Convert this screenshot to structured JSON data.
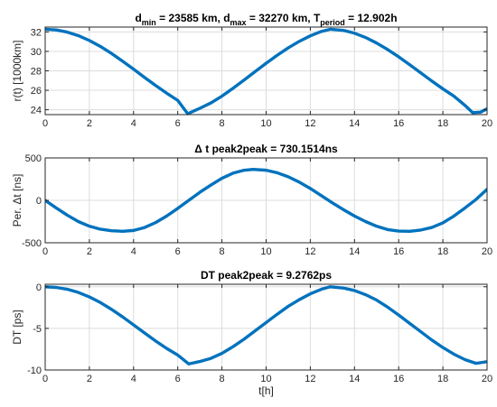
{
  "colors": {
    "line": "#0072BD",
    "grid": "#dcdcdc",
    "axis": "#262626"
  },
  "chart_data": [
    {
      "type": "line",
      "title": {
        "parts": [
          {
            "t": "d"
          },
          {
            "t": "min",
            "sub": true
          },
          {
            "t": " = 23585 km, d"
          },
          {
            "t": "max",
            "sub": true
          },
          {
            "t": " = 32270 km, T"
          },
          {
            "t": "period",
            "sub": true
          },
          {
            "t": " = 12.902h"
          }
        ]
      },
      "xlabel": "",
      "ylabel": "r(t) [1000km]",
      "xlim": [
        0,
        20
      ],
      "ylim": [
        23.5,
        32.5
      ],
      "xticks": [
        0,
        2,
        4,
        6,
        8,
        10,
        12,
        14,
        16,
        18,
        20
      ],
      "yticks": [
        24,
        26,
        28,
        30,
        32
      ],
      "grid": true,
      "series": [
        {
          "x": [
            0,
            0.5,
            1,
            1.5,
            2,
            2.5,
            3,
            3.5,
            4,
            4.5,
            5,
            5.5,
            6,
            6.45,
            7,
            7.5,
            8,
            8.5,
            9,
            9.5,
            10,
            10.5,
            11,
            11.5,
            12,
            12.5,
            12.9,
            13.5,
            14,
            14.5,
            15,
            15.5,
            16,
            16.5,
            17,
            17.5,
            18,
            18.5,
            19,
            19.35,
            19.7,
            20
          ],
          "y": [
            32.27,
            32.2,
            31.98,
            31.62,
            31.12,
            30.51,
            29.79,
            29.0,
            28.17,
            27.32,
            26.49,
            25.7,
            24.96,
            23.59,
            24.15,
            24.7,
            25.4,
            26.2,
            27.05,
            27.92,
            28.78,
            29.6,
            30.36,
            31.03,
            31.6,
            32.05,
            32.27,
            32.16,
            31.87,
            31.43,
            30.86,
            30.19,
            29.44,
            28.63,
            27.79,
            26.95,
            26.15,
            25.4,
            24.45,
            23.7,
            23.75,
            24.1
          ]
        }
      ]
    },
    {
      "type": "line",
      "title": {
        "parts": [
          {
            "t": "Δ t peak2peak = 730.1514ns"
          }
        ]
      },
      "xlabel": "",
      "ylabel": "Per. Δt [ns]",
      "xlim": [
        0,
        20
      ],
      "ylim": [
        -500,
        500
      ],
      "xticks": [
        0,
        2,
        4,
        6,
        8,
        10,
        12,
        14,
        16,
        18,
        20
      ],
      "yticks": [
        -500,
        0,
        500
      ],
      "grid": true,
      "series": [
        {
          "x": [
            0,
            0.5,
            1,
            1.5,
            2,
            2.5,
            3,
            3.5,
            4,
            4.5,
            5,
            5.5,
            6,
            6.5,
            7,
            7.5,
            8,
            8.5,
            9,
            9.4,
            10,
            10.5,
            11,
            11.5,
            12,
            12.5,
            13,
            13.5,
            14,
            14.5,
            15,
            15.5,
            16,
            16.5,
            17,
            17.5,
            18,
            18.5,
            19,
            19.5,
            20
          ],
          "y": [
            0,
            -90,
            -175,
            -250,
            -305,
            -340,
            -358,
            -365,
            -355,
            -320,
            -262,
            -185,
            -95,
            0,
            95,
            180,
            260,
            320,
            355,
            365,
            355,
            325,
            278,
            215,
            140,
            55,
            -30,
            -110,
            -185,
            -250,
            -305,
            -345,
            -362,
            -365,
            -350,
            -320,
            -265,
            -185,
            -90,
            10,
            130
          ]
        }
      ]
    },
    {
      "type": "line",
      "title": {
        "parts": [
          {
            "t": "DT peak2peak = 9.2762ps"
          }
        ]
      },
      "xlabel": "t[h]",
      "ylabel": "DT [ps]",
      "xlim": [
        0,
        20
      ],
      "ylim": [
        -10,
        0.3
      ],
      "xticks": [
        0,
        2,
        4,
        6,
        8,
        10,
        12,
        14,
        16,
        18,
        20
      ],
      "yticks": [
        -10,
        -5,
        0
      ],
      "grid": true,
      "series": [
        {
          "x": [
            0,
            0.5,
            1,
            1.5,
            2,
            2.5,
            3,
            3.5,
            4,
            4.5,
            5,
            5.5,
            6,
            6.5,
            7,
            7.5,
            8,
            8.5,
            9,
            9.5,
            10,
            10.5,
            11,
            11.5,
            12,
            12.5,
            12.9,
            13.5,
            14,
            14.5,
            15,
            15.5,
            16,
            16.5,
            17,
            17.5,
            18,
            18.5,
            19,
            19.5,
            20
          ],
          "y": [
            0,
            -0.08,
            -0.3,
            -0.68,
            -1.22,
            -1.9,
            -2.71,
            -3.61,
            -4.58,
            -5.56,
            -6.52,
            -7.41,
            -8.2,
            -9.27,
            -8.98,
            -8.6,
            -8.0,
            -7.2,
            -6.3,
            -5.3,
            -4.3,
            -3.3,
            -2.35,
            -1.55,
            -0.85,
            -0.3,
            0,
            -0.15,
            -0.45,
            -0.95,
            -1.6,
            -2.45,
            -3.4,
            -4.4,
            -5.4,
            -6.4,
            -7.3,
            -8.1,
            -8.75,
            -9.2,
            -9.0
          ]
        }
      ]
    }
  ]
}
